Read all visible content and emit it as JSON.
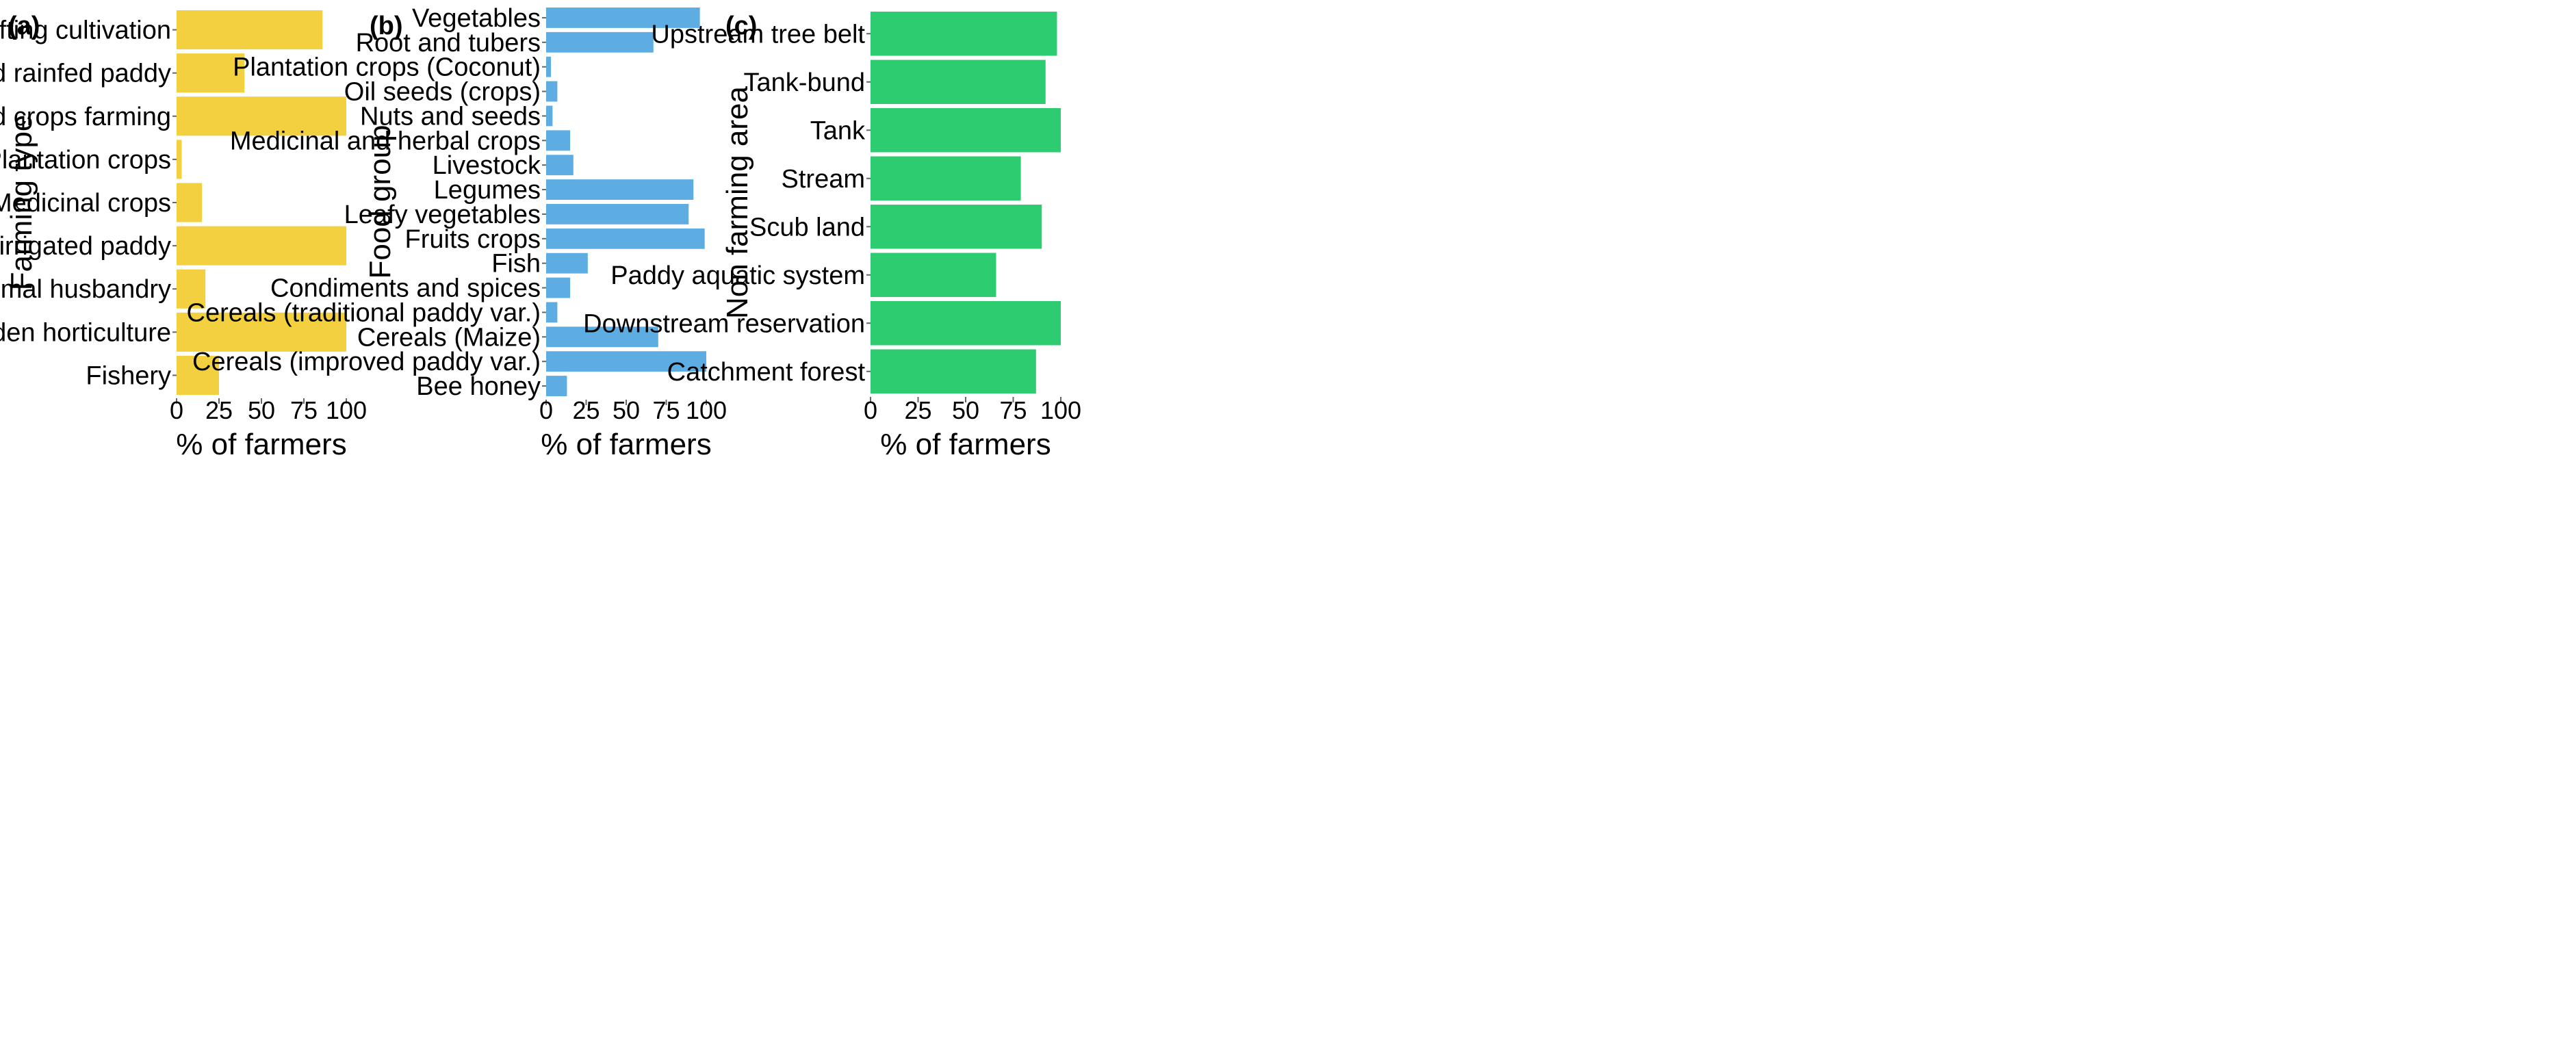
{
  "chart_data": [
    {
      "type": "bar",
      "orientation": "horizontal",
      "panel_label": "(a)",
      "color": "#f2d03f",
      "xlabel": "% of farmers",
      "ylabel": "Farming type",
      "xlim": [
        0,
        100
      ],
      "xticks": [
        "0",
        "25",
        "50",
        "75",
        "100"
      ],
      "categories": [
        "Upland shifting cultivation",
        "Upland rainfed paddy",
        "Seasonal field crops farming",
        "Plantation crops",
        "Medicinal crops",
        "Lowland irrigated paddy",
        "Livestock/animal husbandry",
        "Home garden horticulture",
        "Fishery"
      ],
      "values": [
        86,
        40,
        100,
        3,
        15,
        100,
        17,
        100,
        25
      ]
    },
    {
      "type": "bar",
      "orientation": "horizontal",
      "panel_label": "(b)",
      "color": "#5dade2",
      "xlabel": "% of farmers",
      "ylabel": "Food group",
      "xlim": [
        0,
        100
      ],
      "xticks": [
        "0",
        "25",
        "50",
        "75",
        "100"
      ],
      "categories": [
        "Vegetables",
        "Root and tubers",
        "Plantation crops (Coconut)",
        "Oil seeds (crops)",
        "Nuts and seeds",
        "Medicinal and herbal crops",
        "Livestock",
        "Legumes",
        "Leafy vegetables",
        "Fruits crops",
        "Fish",
        "Condiments  and spices",
        "Cereals (traditional paddy var.)",
        "Cereals (Maize)",
        "Cereals (improved paddy var.)",
        "Bee honey"
      ],
      "values": [
        96,
        67,
        3,
        7,
        4,
        15,
        17,
        92,
        89,
        99,
        26,
        15,
        7,
        70,
        100,
        13
      ]
    },
    {
      "type": "bar",
      "orientation": "horizontal",
      "panel_label": "(c)",
      "color": "#2ecc71",
      "xlabel": "% of farmers",
      "ylabel": "Non farming area",
      "xlim": [
        0,
        100
      ],
      "xticks": [
        "0",
        "25",
        "50",
        "75",
        "100"
      ],
      "categories": [
        "Upstream tree belt",
        "Tank-bund",
        "Tank",
        "Stream",
        "Scub land",
        "Paddy aquatic system",
        "Downstream reservation",
        "Catchment forest"
      ],
      "values": [
        98,
        92,
        100,
        79,
        90,
        66,
        100,
        87
      ]
    }
  ]
}
